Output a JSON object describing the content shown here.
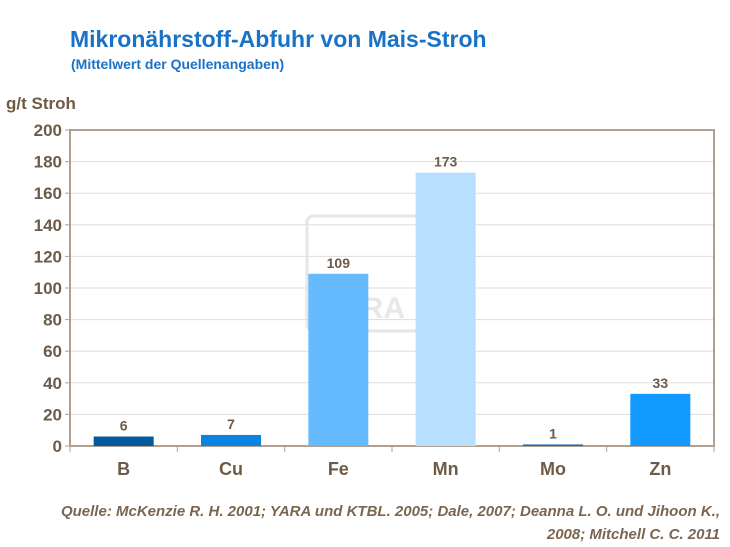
{
  "chart_data": {
    "type": "bar",
    "title": "Mikronährstoff-Abfuhr von Mais-Stroh",
    "subtitle": "(Mittelwert der Quellenangaben)",
    "ylabel": "g/t Stroh",
    "xlabel": "",
    "categories": [
      "B",
      "Cu",
      "Fe",
      "Mn",
      "Mo",
      "Zn"
    ],
    "values": [
      6,
      7,
      109,
      173,
      1,
      33
    ],
    "data_labels": [
      "6",
      "7",
      "109",
      "173",
      "1",
      "33"
    ],
    "bar_colors": [
      "#005a9c",
      "#0a84e0",
      "#66bbff",
      "#b8dfff",
      "#1a6fb8",
      "#1199ff"
    ],
    "ylim": [
      0,
      200
    ],
    "yticks": [
      0,
      20,
      40,
      60,
      80,
      100,
      120,
      140,
      160,
      180,
      200
    ],
    "grid": true,
    "legend": "none"
  },
  "source": "Quelle: McKenzie R. H. 2001; YARA und KTBL. 2005; Dale, 2007; Deanna L. O. und Jihoon K.,  2008; Mitchell C. C. 2011",
  "watermark_logo": "YARA",
  "colors": {
    "title": "#1a72c6",
    "text": "#6e5a46",
    "axis": "#b0a090",
    "grid": "#dddddd"
  }
}
